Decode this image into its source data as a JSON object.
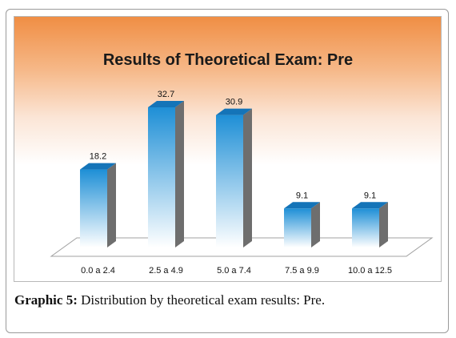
{
  "chart_data": {
    "type": "bar",
    "title": "Results of Theoretical Exam: Pre",
    "categories": [
      "0.0 a 2.4",
      "2.5 a 4.9",
      "5.0 a 7.4",
      "7.5 a 9.9",
      "10.0 a 12.5"
    ],
    "values": [
      18.2,
      32.7,
      30.9,
      9.1,
      9.1
    ],
    "data_labels": [
      "18.2",
      "32.7",
      "30.9",
      "9.1",
      "9.1"
    ],
    "xlabel": "",
    "ylabel": "",
    "ylim": [
      0,
      35
    ],
    "grid": false,
    "legend": "none",
    "style": "3d-cylinder-bars",
    "colors": {
      "bar_top": "#1e8fd6",
      "bar_bottom": "#ffffff",
      "bar_side": "#6e6e6e",
      "bar_cap": "#1474b8",
      "title_bg_top": "#f08e44",
      "floor": "#ffffff"
    }
  },
  "caption": {
    "label": "Graphic 5:",
    "text": " Distribution by theoretical exam results: Pre."
  }
}
